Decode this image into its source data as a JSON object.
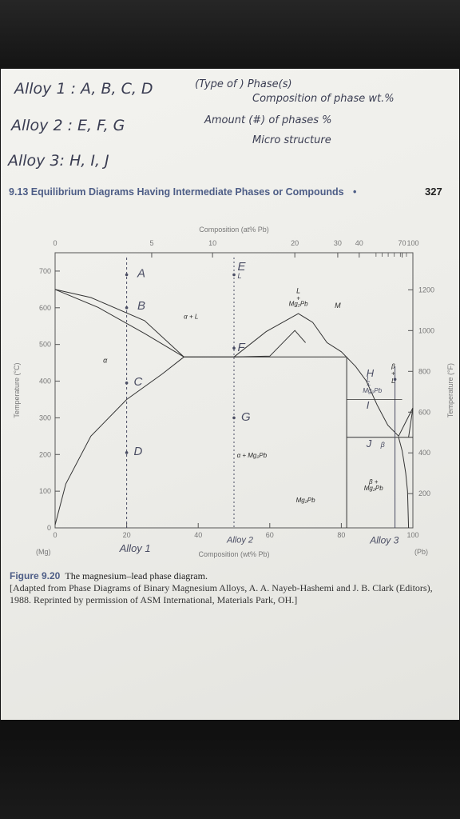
{
  "handwritten_notes": {
    "alloy1": "Alloy 1 : A, B, C, D",
    "alloy2": "Alloy 2 : E, F, G",
    "alloy3": "Alloy 3: H, I, J",
    "line1": "(Type of ) Phase(s)",
    "line2": "Composition of phase wt.%",
    "line3": "Amount (#) of phases %",
    "line4": "Micro structure"
  },
  "page_header": {
    "section": "9.13 Equilibrium Diagrams Having Intermediate Phases or Compounds",
    "bullet": "•",
    "page_number": "327"
  },
  "chart_data": {
    "type": "line",
    "title": "",
    "xlabel": "Composition (wt% Pb)",
    "x2label": "Composition (at% Pb)",
    "ylabel": "Temperature (°C)",
    "y2label": "Temperature (°F)",
    "xlim": [
      0,
      100
    ],
    "ylim": [
      0,
      750
    ],
    "x_ticks": [
      "0",
      "20",
      "40",
      "60",
      "80",
      "100"
    ],
    "x_end_labels": [
      "(Mg)",
      "(Pb)"
    ],
    "x2_ticks": [
      "0",
      "5",
      "10",
      "20",
      "30",
      "40",
      "70",
      "100"
    ],
    "x2_positions_wt": [
      0,
      27,
      44,
      67,
      79,
      85,
      97,
      100
    ],
    "y_ticks": [
      "0",
      "100",
      "200",
      "300",
      "400",
      "500",
      "600",
      "700"
    ],
    "y2_ticks": [
      "200",
      "400",
      "600",
      "800",
      "1000",
      "1200"
    ],
    "series": [
      {
        "values": [
          [
            0,
            650
          ],
          [
            10,
            628
          ],
          [
            25,
            565
          ],
          [
            36,
            466
          ],
          [
            50,
            466
          ],
          [
            60,
            468
          ],
          [
            67,
            538
          ],
          [
            70,
            505
          ]
        ]
      },
      {
        "values": [
          [
            0,
            650
          ],
          [
            12,
            601
          ],
          [
            25,
            530
          ],
          [
            36,
            466
          ]
        ]
      },
      {
        "values": [
          [
            0,
            8
          ],
          [
            3,
            120
          ],
          [
            10,
            250
          ],
          [
            20,
            350
          ],
          [
            30,
            420
          ],
          [
            36,
            466
          ]
        ]
      },
      {
        "values": [
          [
            50,
            466
          ],
          [
            59,
            535
          ],
          [
            68,
            584
          ],
          [
            72,
            560
          ],
          [
            76,
            505
          ],
          [
            80,
            480
          ],
          [
            84,
            440
          ],
          [
            87,
            400
          ],
          [
            90,
            335
          ],
          [
            93,
            280
          ],
          [
            96,
            250
          ],
          [
            100,
            327
          ]
        ]
      },
      {
        "values": [
          [
            96,
            247
          ],
          [
            97,
            210
          ],
          [
            98,
            150
          ],
          [
            98.5,
            100
          ],
          [
            98.8,
            0
          ]
        ]
      }
    ],
    "phase_labels": {
      "L": "L",
      "alpha": "α",
      "alpha_L": "α + L",
      "L_plus": "+",
      "L_Mg2Pb": "Mg₂Pb",
      "M": "M",
      "alpha_Mg2Pb": "α + Mg₂Pb",
      "Mg2Pb": "Mg₂Pb",
      "beta": "β",
      "beta_L": "β + L",
      "beta_plus": "β +",
      "beta_Mg2Pb": "Mg₂Pb"
    },
    "handwritten_points": {
      "A": "A",
      "B": "B",
      "C": "C",
      "D": "D",
      "E": "E",
      "F": "F",
      "G": "G",
      "H": "H",
      "I": "I",
      "J": "J",
      "alloy1": "Alloy 1",
      "alloy2": "Alloy 2",
      "alloy3": "Alloy 3",
      "E_sub": "L",
      "H_sub": "L",
      "H_plus": "+",
      "H_phase": "Mg₂Pb",
      "J_beta": "β"
    }
  },
  "caption": {
    "label": "Figure 9.20",
    "title": "The magnesium–lead phase diagram.",
    "source": "[Adapted from Phase Diagrams of Binary Magnesium Alloys, A. A. Nayeb-Hashemi and J. B. Clark (Editors), 1988. Reprinted by permission of ASM International, Materials Park, OH.]"
  }
}
